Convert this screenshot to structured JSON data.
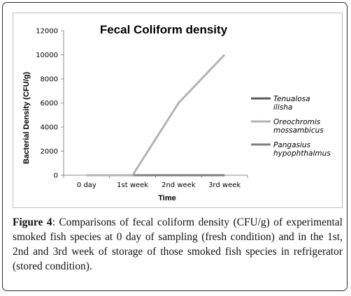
{
  "chart_data": {
    "type": "line",
    "title": "Fecal Coliform density",
    "xlabel": "Time",
    "ylabel": "Bacterial Density (CFU/g)",
    "categories": [
      "0 day",
      "1st week",
      "2nd week",
      "3rd week"
    ],
    "ylim": [
      0,
      12000
    ],
    "yticks": [
      0,
      2000,
      4000,
      6000,
      8000,
      10000,
      12000
    ],
    "grid": false,
    "legend_position": "right",
    "series": [
      {
        "name": "Tenualosa ilisha",
        "legend_lines": [
          "Tenualosa",
          "ilisha"
        ],
        "color": "#5b5b5b",
        "values": [
          0,
          0,
          0,
          0
        ]
      },
      {
        "name": "Oreochromis mossambicus",
        "legend_lines": [
          "Oreochromis",
          "mossambicus"
        ],
        "color": "#b3b3b3",
        "values": [
          0,
          0,
          6000,
          10000
        ]
      },
      {
        "name": "Pangasius hypophthalmus",
        "legend_lines": [
          "Pangasius",
          "hypophthalmus"
        ],
        "color": "#7f7f7f",
        "values": [
          0,
          0,
          0,
          0
        ]
      }
    ]
  },
  "caption": {
    "label": "Figure 4",
    "text": ": Comparisons of fecal coliform density (CFU/g) of experimental smoked fish species at 0 day of sampling (fresh condition) and in the 1st, 2nd and 3rd week of storage of those smoked fish species in refrigerator (stored condition)."
  }
}
